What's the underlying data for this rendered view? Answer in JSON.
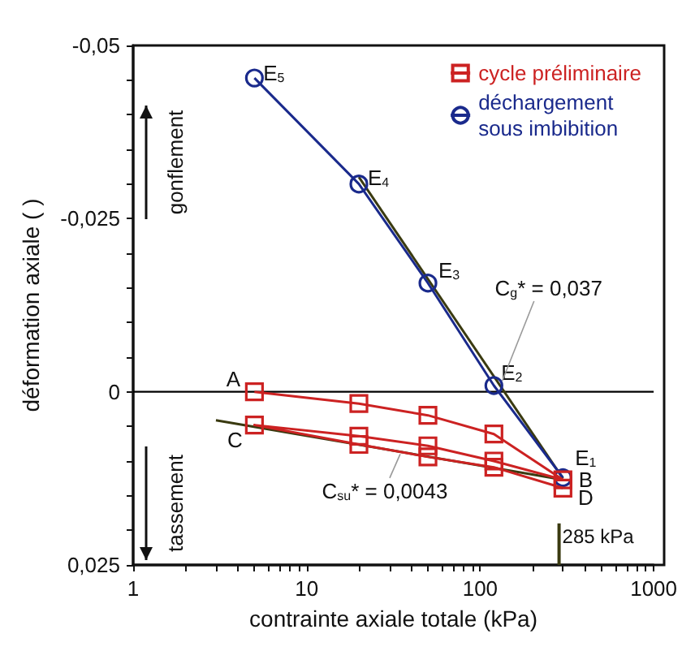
{
  "chart_data": {
    "type": "line",
    "xlabel": "contrainte axiale totale (kPa)",
    "ylabel": "déformation axiale ( )",
    "log": "x",
    "xlim": [
      1,
      1000
    ],
    "ylim": [
      0.025,
      -0.05
    ],
    "xticks": [
      1,
      {
        "value": 2,
        "label": null
      },
      {
        "value": 3,
        "label": null
      },
      {
        "value": 4,
        "label": null
      },
      {
        "value": 5,
        "label": null
      },
      {
        "value": 6,
        "label": null
      },
      {
        "value": 7,
        "label": null
      },
      {
        "value": 8,
        "label": null
      },
      {
        "value": 9,
        "label": null
      },
      10,
      {
        "value": 20,
        "label": null
      },
      {
        "value": 30,
        "label": null
      },
      {
        "value": 40,
        "label": null
      },
      {
        "value": 50,
        "label": null
      },
      {
        "value": 60,
        "label": null
      },
      {
        "value": 70,
        "label": null
      },
      {
        "value": 80,
        "label": null
      },
      {
        "value": 90,
        "label": null
      },
      100,
      {
        "value": 200,
        "label": null
      },
      {
        "value": 300,
        "label": null
      },
      {
        "value": 400,
        "label": null
      },
      {
        "value": 500,
        "label": null
      },
      {
        "value": 600,
        "label": null
      },
      {
        "value": 700,
        "label": null
      },
      {
        "value": 800,
        "label": null
      },
      {
        "value": 900,
        "label": null
      },
      1000
    ],
    "yticks": [
      {
        "value": -0.05,
        "label": "-0,05"
      },
      {
        "value": -0.045,
        "label": null
      },
      {
        "value": -0.04,
        "label": null
      },
      {
        "value": -0.035,
        "label": null
      },
      {
        "value": -0.03,
        "label": null
      },
      {
        "value": -0.025,
        "label": "-0,025"
      },
      {
        "value": -0.02,
        "label": null
      },
      {
        "value": -0.015,
        "label": null
      },
      {
        "value": -0.01,
        "label": null
      },
      {
        "value": -0.005,
        "label": null
      },
      {
        "value": 0,
        "label": "0"
      },
      {
        "value": 0.005,
        "label": null
      },
      {
        "value": 0.01,
        "label": null
      },
      {
        "value": 0.015,
        "label": null
      },
      {
        "value": 0.02,
        "label": null
      },
      {
        "value": 0.025,
        "label": "0,025"
      }
    ],
    "grid": false,
    "legend": "top right",
    "series": [
      {
        "name": "cycle préliminaire",
        "color": "#cc2222",
        "marker": "square",
        "x": [
          5,
          20,
          50,
          120,
          300,
          120,
          50,
          20,
          5,
          20,
          50,
          120,
          300
        ],
        "values": [
          0,
          0.0017,
          0.0034,
          0.0061,
          0.0127,
          0.01,
          0.0078,
          0.0064,
          0.0048,
          0.0076,
          0.0094,
          0.0109,
          0.0139
        ]
      },
      {
        "name": "déchargement\nsous imbibition",
        "color": "#1a2a8c",
        "marker": "circle",
        "x": [
          5,
          20,
          50,
          120,
          300
        ],
        "values": [
          -0.0453,
          -0.03,
          -0.0157,
          -0.0009,
          0.0124
        ]
      },
      {
        "color": "#3a3a10",
        "marker": "none",
        "x": [
          20,
          300
        ],
        "values": [
          -0.031,
          0.0125
        ]
      },
      {
        "color": "#3a3a10",
        "marker": "none",
        "x": [
          3,
          300
        ],
        "values": [
          0.0041,
          0.0127
        ]
      }
    ],
    "ref_lines": [
      {
        "axis": "y",
        "value": 0,
        "color": "#000000"
      },
      {
        "axis": "x",
        "value": 285,
        "label": "285 kPa",
        "color": "#3a3a10"
      }
    ],
    "annotations": [
      {
        "text": "A",
        "x": 5,
        "y": 0
      },
      {
        "text": "C",
        "x": 5,
        "y": 0.0048
      },
      {
        "text": "B",
        "x": 300,
        "y": 0.0127
      },
      {
        "text": "D",
        "x": 300,
        "y": 0.0139
      },
      {
        "text": "E$_{1}$",
        "x": 300,
        "y": 0.0124
      },
      {
        "text": "E$_{2}$",
        "x": 120,
        "y": -0.0009
      },
      {
        "text": "E$_{3}$",
        "x": 50,
        "y": -0.0157
      },
      {
        "text": "E$_{4}$",
        "x": 20,
        "y": -0.03
      },
      {
        "text": "E$_{5}$",
        "x": 5,
        "y": -0.0453
      },
      {
        "text": "C$_{g}$* = 0,037",
        "x": 130,
        "y": -0.0009
      },
      {
        "text": "C$_{su}$* = 0,0043",
        "x": 35,
        "y": 0.0087
      },
      "gonflement",
      "tassement"
    ]
  }
}
